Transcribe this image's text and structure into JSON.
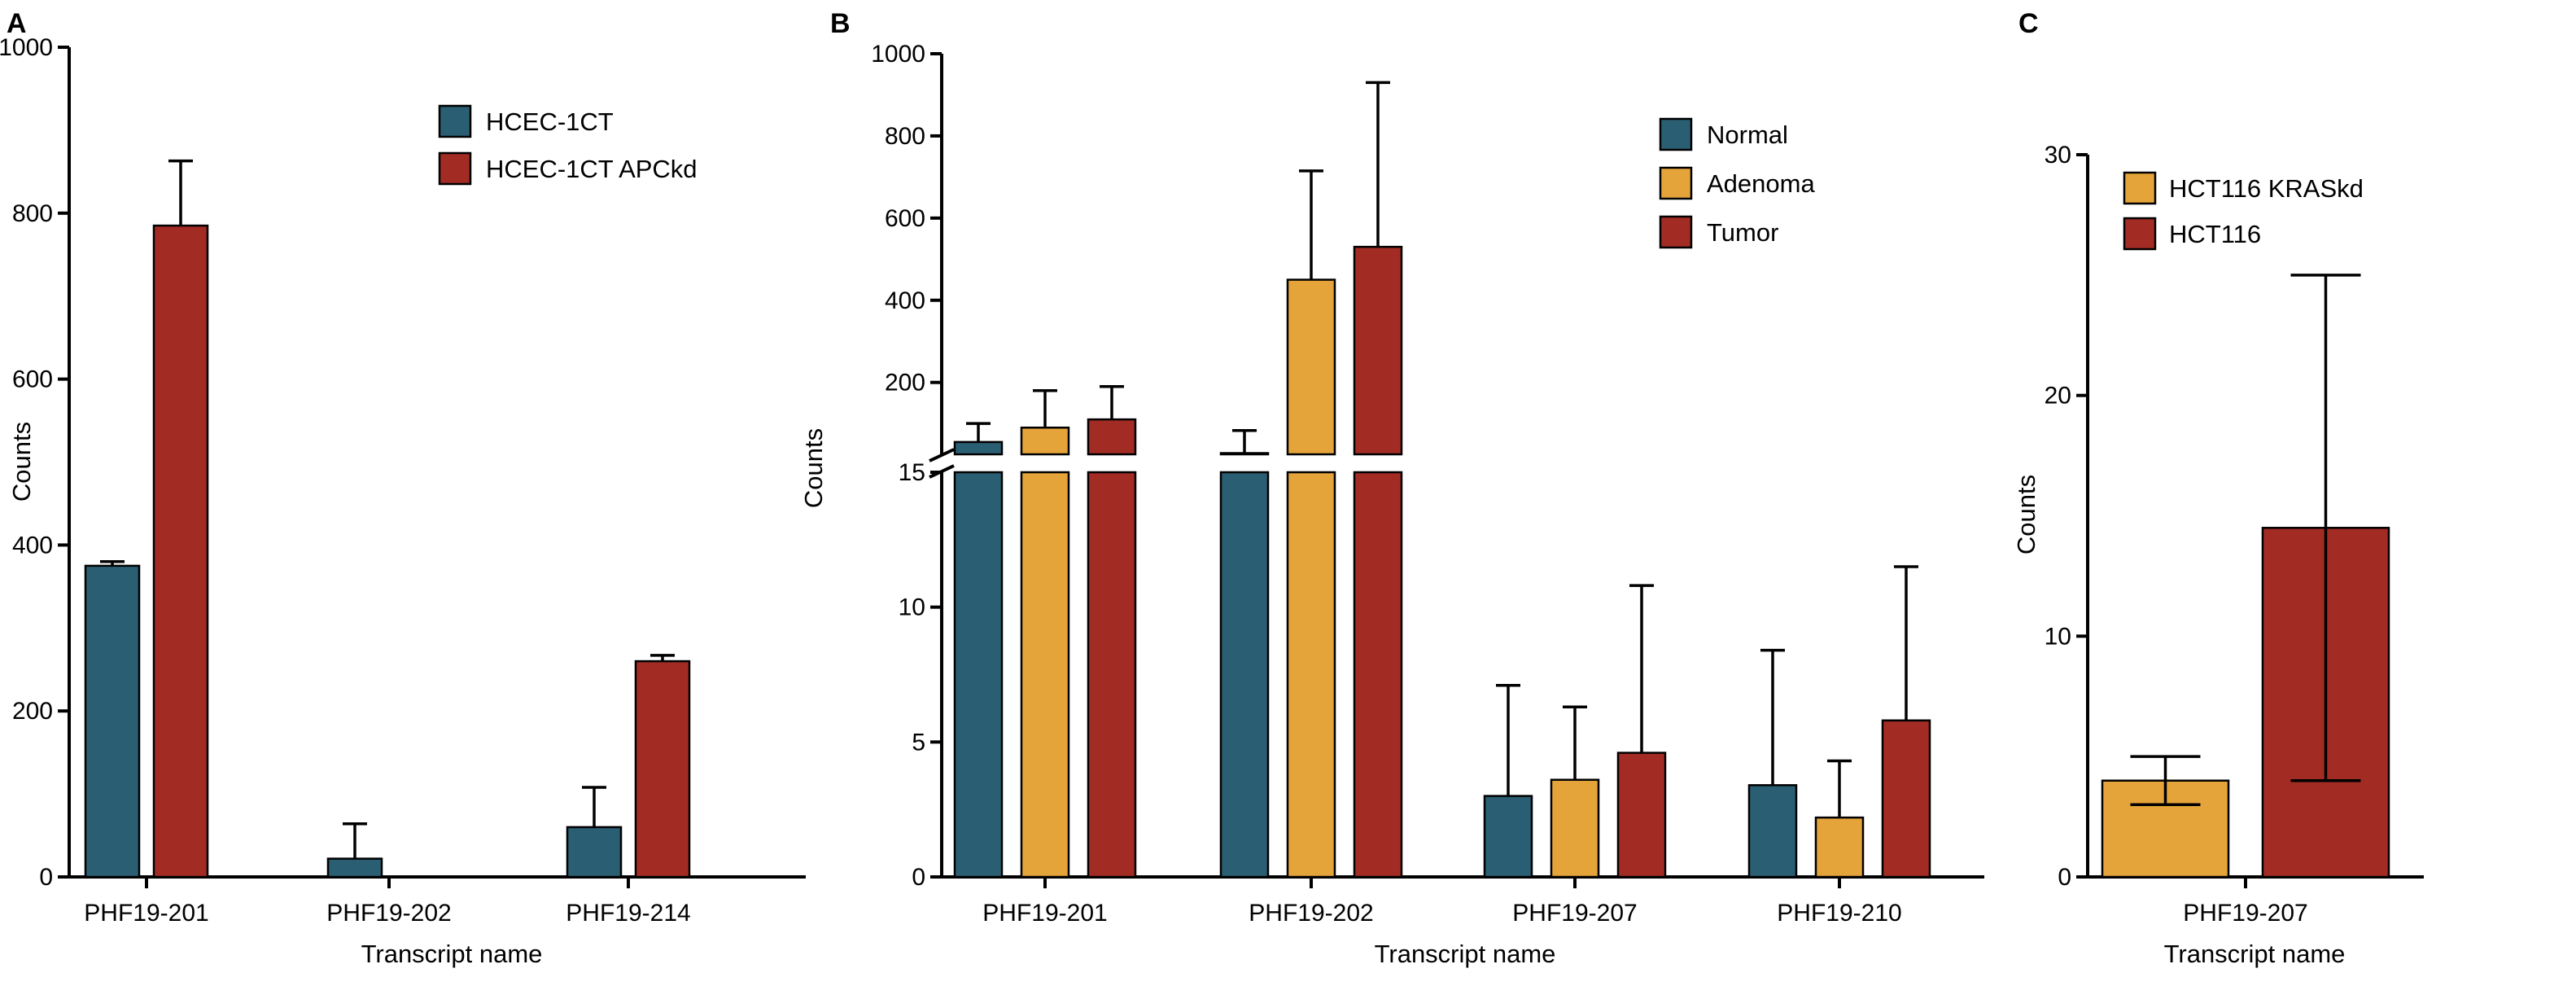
{
  "colors": {
    "HCEC-1CT": "#2A5F73",
    "HCEC-1CT APCkd": "#A22C24",
    "Normal": "#2A5F73",
    "Adenoma": "#E5A43A",
    "Tumor": "#A22C24",
    "HCT116 KRASkd": "#E5A43A",
    "HCT116": "#A22C24"
  },
  "chart_data": [
    {
      "panel": "A",
      "type": "bar",
      "ylabel": "Counts",
      "xlabel": "Transcript name",
      "ylim": [
        0,
        1000
      ],
      "yticks": [
        0,
        200,
        400,
        600,
        800,
        1000
      ],
      "categories": [
        "PHF19-201",
        "PHF19-202",
        "PHF19-214"
      ],
      "legend_position": "top-right",
      "series": [
        {
          "name": "HCEC-1CT",
          "values": [
            375,
            22,
            60
          ],
          "errors": [
            5,
            42,
            48
          ]
        },
        {
          "name": "HCEC-1CT APCkd",
          "values": [
            785,
            0,
            260
          ],
          "errors": [
            78,
            0,
            7
          ]
        }
      ]
    },
    {
      "panel": "B",
      "type": "bar",
      "ylabel": "Counts",
      "xlabel": "Transcript name",
      "broken_axis": true,
      "upper_ylim": [
        25,
        1000
      ],
      "upper_yticks": [
        200,
        400,
        600,
        800,
        1000
      ],
      "lower_ylim": [
        0,
        15
      ],
      "lower_yticks": [
        0,
        5,
        10,
        15
      ],
      "categories": [
        "PHF19-201",
        "PHF19-202",
        "PHF19-207",
        "PHF19-210"
      ],
      "legend_position": "top-right",
      "series": [
        {
          "name": "Normal",
          "values": [
            55,
            28,
            3.0,
            3.4
          ],
          "errors": [
            45,
            55,
            4.1,
            5.0
          ]
        },
        {
          "name": "Adenoma",
          "values": [
            90,
            450,
            3.6,
            2.2
          ],
          "errors": [
            90,
            265,
            2.7,
            2.1
          ]
        },
        {
          "name": "Tumor",
          "values": [
            110,
            530,
            4.6,
            5.8
          ],
          "errors": [
            80,
            400,
            6.2,
            5.7
          ]
        }
      ]
    },
    {
      "panel": "C",
      "type": "bar",
      "ylabel": "Counts",
      "xlabel": "Transcript name",
      "ylim": [
        0,
        30
      ],
      "yticks": [
        0,
        10,
        20,
        30
      ],
      "categories": [
        "PHF19-207"
      ],
      "legend_position": "top-left",
      "series": [
        {
          "name": "HCT116 KRASkd",
          "values": [
            4
          ],
          "errors": [
            1
          ]
        },
        {
          "name": "HCT116",
          "values": [
            14.5
          ],
          "errors": [
            10.5
          ]
        }
      ]
    }
  ]
}
